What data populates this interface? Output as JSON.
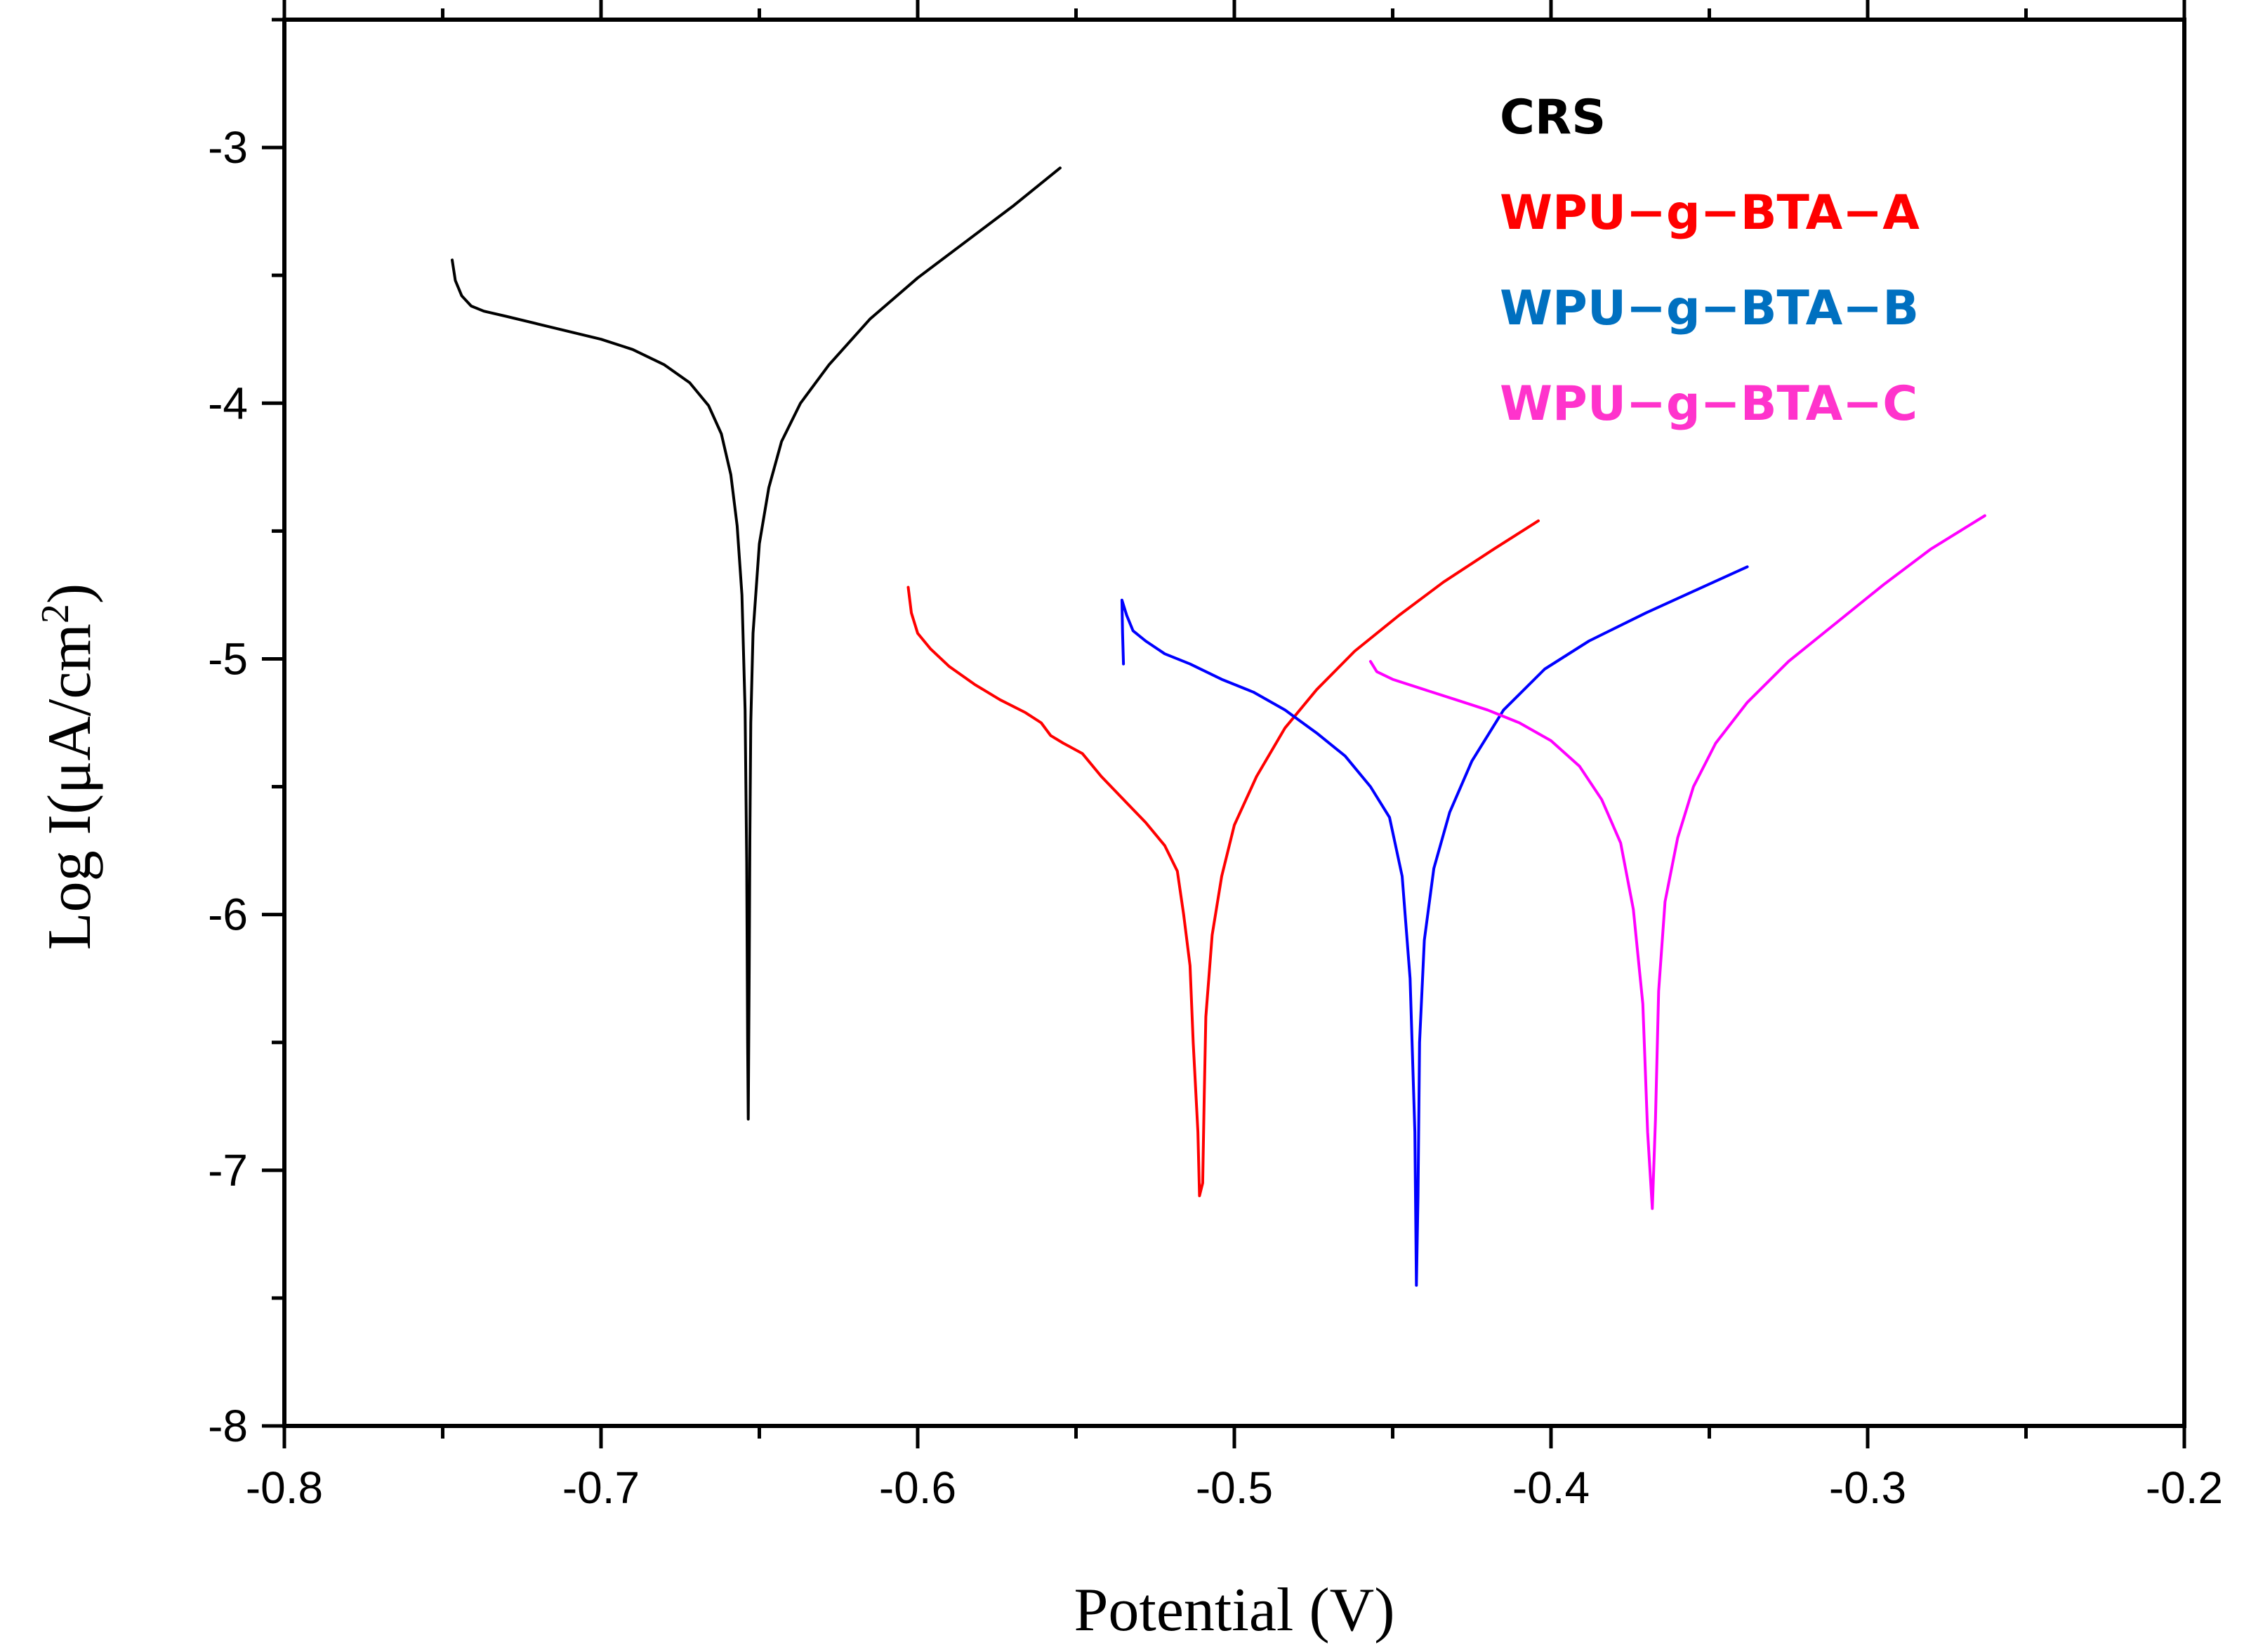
{
  "chart_data": {
    "type": "line",
    "title": "",
    "xlabel": "Potential (V)",
    "ylabel_main": "Log I(μA/cm",
    "ylabel_sup": "2",
    "ylabel_close": ")",
    "xlim": [
      -0.8,
      -0.2
    ],
    "ylim": [
      -8,
      -2.5
    ],
    "xticks": [
      -0.8,
      -0.7,
      -0.6,
      -0.5,
      -0.4,
      -0.3,
      -0.2
    ],
    "xtick_labels": [
      "-0.8",
      "-0.7",
      "-0.6",
      "-0.5",
      "-0.4",
      "-0.3",
      "-0.2"
    ],
    "yticks": [
      -8,
      -7,
      -6,
      -5,
      -4,
      -3
    ],
    "ytick_labels": [
      "-8",
      "-7",
      "-6",
      "-5",
      "-4",
      "-3"
    ],
    "grid": false,
    "legend_position": "top-right",
    "series": [
      {
        "name": "CRS",
        "color": "#000000",
        "points": [
          [
            -0.747,
            -3.44
          ],
          [
            -0.746,
            -3.52
          ],
          [
            -0.744,
            -3.58
          ],
          [
            -0.741,
            -3.62
          ],
          [
            -0.737,
            -3.64
          ],
          [
            -0.73,
            -3.66
          ],
          [
            -0.72,
            -3.69
          ],
          [
            -0.71,
            -3.72
          ],
          [
            -0.7,
            -3.75
          ],
          [
            -0.69,
            -3.79
          ],
          [
            -0.68,
            -3.85
          ],
          [
            -0.672,
            -3.92
          ],
          [
            -0.666,
            -4.01
          ],
          [
            -0.662,
            -4.12
          ],
          [
            -0.659,
            -4.28
          ],
          [
            -0.657,
            -4.48
          ],
          [
            -0.6555,
            -4.75
          ],
          [
            -0.6545,
            -5.2
          ],
          [
            -0.654,
            -5.8
          ],
          [
            -0.6537,
            -6.5
          ],
          [
            -0.6535,
            -6.8
          ],
          [
            -0.6532,
            -6.2
          ],
          [
            -0.653,
            -5.7
          ],
          [
            -0.6527,
            -5.25
          ],
          [
            -0.652,
            -4.9
          ],
          [
            -0.65,
            -4.55
          ],
          [
            -0.647,
            -4.33
          ],
          [
            -0.643,
            -4.15
          ],
          [
            -0.637,
            -4.0
          ],
          [
            -0.628,
            -3.85
          ],
          [
            -0.615,
            -3.67
          ],
          [
            -0.6,
            -3.51
          ],
          [
            -0.585,
            -3.37
          ],
          [
            -0.57,
            -3.23
          ],
          [
            -0.555,
            -3.08
          ]
        ]
      },
      {
        "name": "WPU−g−BTA−A",
        "color": "#ff0000",
        "points": [
          [
            -0.603,
            -4.72
          ],
          [
            -0.602,
            -4.82
          ],
          [
            -0.6,
            -4.9
          ],
          [
            -0.596,
            -4.96
          ],
          [
            -0.59,
            -5.03
          ],
          [
            -0.582,
            -5.1
          ],
          [
            -0.574,
            -5.16
          ],
          [
            -0.566,
            -5.21
          ],
          [
            -0.561,
            -5.25
          ],
          [
            -0.558,
            -5.3
          ],
          [
            -0.554,
            -5.33
          ],
          [
            -0.548,
            -5.37
          ],
          [
            -0.542,
            -5.46
          ],
          [
            -0.535,
            -5.55
          ],
          [
            -0.528,
            -5.64
          ],
          [
            -0.522,
            -5.73
          ],
          [
            -0.518,
            -5.83
          ],
          [
            -0.516,
            -6.0
          ],
          [
            -0.514,
            -6.2
          ],
          [
            -0.513,
            -6.5
          ],
          [
            -0.5115,
            -6.85
          ],
          [
            -0.511,
            -7.1
          ],
          [
            -0.51,
            -7.05
          ],
          [
            -0.5095,
            -6.7
          ],
          [
            -0.509,
            -6.4
          ],
          [
            -0.507,
            -6.08
          ],
          [
            -0.504,
            -5.85
          ],
          [
            -0.5,
            -5.65
          ],
          [
            -0.493,
            -5.46
          ],
          [
            -0.484,
            -5.27
          ],
          [
            -0.474,
            -5.12
          ],
          [
            -0.462,
            -4.97
          ],
          [
            -0.448,
            -4.83
          ],
          [
            -0.434,
            -4.7
          ],
          [
            -0.418,
            -4.57
          ],
          [
            -0.404,
            -4.46
          ]
        ]
      },
      {
        "name": "WPU−g−BTA−B",
        "color": "#0000ff",
        "points": [
          [
            -0.535,
            -5.02
          ],
          [
            -0.5353,
            -4.9
          ],
          [
            -0.5355,
            -4.77
          ],
          [
            -0.534,
            -4.83
          ],
          [
            -0.532,
            -4.89
          ],
          [
            -0.528,
            -4.93
          ],
          [
            -0.522,
            -4.98
          ],
          [
            -0.514,
            -5.02
          ],
          [
            -0.504,
            -5.08
          ],
          [
            -0.494,
            -5.13
          ],
          [
            -0.484,
            -5.2
          ],
          [
            -0.474,
            -5.29
          ],
          [
            -0.465,
            -5.38
          ],
          [
            -0.457,
            -5.5
          ],
          [
            -0.451,
            -5.62
          ],
          [
            -0.447,
            -5.85
          ],
          [
            -0.4445,
            -6.25
          ],
          [
            -0.443,
            -6.85
          ],
          [
            -0.4425,
            -7.45
          ],
          [
            -0.442,
            -7.1
          ],
          [
            -0.4415,
            -6.5
          ],
          [
            -0.44,
            -6.1
          ],
          [
            -0.437,
            -5.82
          ],
          [
            -0.432,
            -5.6
          ],
          [
            -0.425,
            -5.4
          ],
          [
            -0.415,
            -5.2
          ],
          [
            -0.402,
            -5.04
          ],
          [
            -0.388,
            -4.93
          ],
          [
            -0.37,
            -4.82
          ],
          [
            -0.354,
            -4.73
          ],
          [
            -0.338,
            -4.64
          ]
        ]
      },
      {
        "name": "WPU−g−BTA−C",
        "color": "#ff00ff",
        "points": [
          [
            -0.457,
            -5.01
          ],
          [
            -0.455,
            -5.05
          ],
          [
            -0.45,
            -5.08
          ],
          [
            -0.44,
            -5.12
          ],
          [
            -0.43,
            -5.16
          ],
          [
            -0.42,
            -5.2
          ],
          [
            -0.41,
            -5.25
          ],
          [
            -0.4,
            -5.32
          ],
          [
            -0.391,
            -5.42
          ],
          [
            -0.384,
            -5.55
          ],
          [
            -0.378,
            -5.72
          ],
          [
            -0.374,
            -5.98
          ],
          [
            -0.371,
            -6.35
          ],
          [
            -0.3695,
            -6.85
          ],
          [
            -0.368,
            -7.15
          ],
          [
            -0.367,
            -6.8
          ],
          [
            -0.366,
            -6.3
          ],
          [
            -0.364,
            -5.95
          ],
          [
            -0.36,
            -5.7
          ],
          [
            -0.355,
            -5.5
          ],
          [
            -0.348,
            -5.33
          ],
          [
            -0.338,
            -5.17
          ],
          [
            -0.325,
            -5.01
          ],
          [
            -0.31,
            -4.86
          ],
          [
            -0.295,
            -4.71
          ],
          [
            -0.28,
            -4.57
          ],
          [
            -0.263,
            -4.44
          ]
        ]
      }
    ]
  }
}
